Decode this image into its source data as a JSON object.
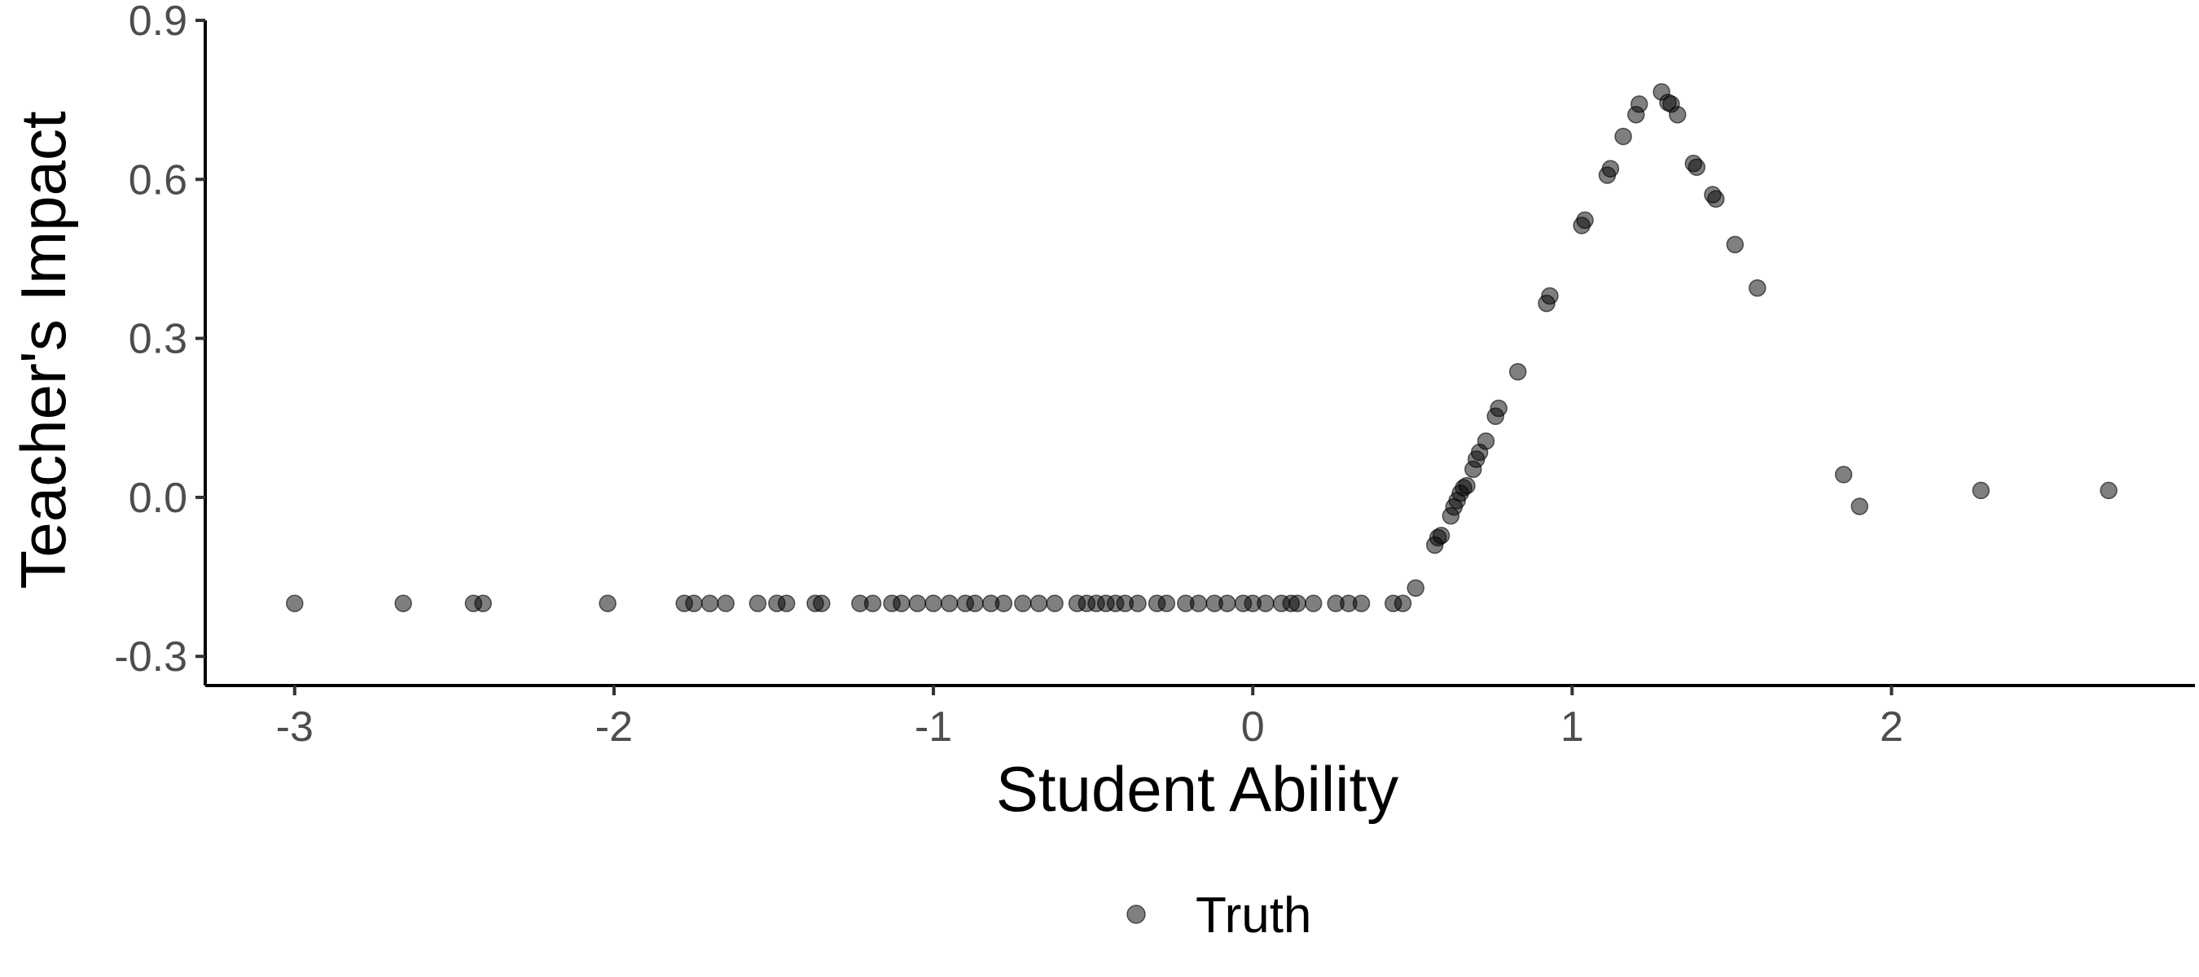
{
  "chart_data": {
    "type": "scatter",
    "xlabel": "Student Ability",
    "ylabel": "Teacher's Impact",
    "xlim": [
      -3.28,
      2.95
    ],
    "ylim": [
      -0.355,
      0.9
    ],
    "x_ticks": [
      -3,
      -2,
      -1,
      0,
      1,
      2
    ],
    "x_tick_labels": [
      "-3",
      "-2",
      "-1",
      "0",
      "1",
      "2"
    ],
    "y_ticks": [
      -0.3,
      0.0,
      0.3,
      0.6,
      0.9
    ],
    "y_tick_labels": [
      "-0.3",
      "0.0",
      "0.3",
      "0.6",
      "0.9"
    ],
    "grid": false,
    "legend_position": "bottom",
    "point_color": "#000000",
    "point_opacity": 0.5,
    "series": [
      {
        "name": "Truth",
        "points": [
          [
            -3.0,
            -0.2
          ],
          [
            -2.66,
            -0.2
          ],
          [
            -2.44,
            -0.2
          ],
          [
            -2.41,
            -0.2
          ],
          [
            -2.02,
            -0.2
          ],
          [
            -1.78,
            -0.2
          ],
          [
            -1.75,
            -0.2
          ],
          [
            -1.7,
            -0.2
          ],
          [
            -1.65,
            -0.2
          ],
          [
            -1.55,
            -0.2
          ],
          [
            -1.49,
            -0.2
          ],
          [
            -1.46,
            -0.2
          ],
          [
            -1.37,
            -0.2
          ],
          [
            -1.35,
            -0.2
          ],
          [
            -1.23,
            -0.2
          ],
          [
            -1.19,
            -0.2
          ],
          [
            -1.13,
            -0.2
          ],
          [
            -1.1,
            -0.2
          ],
          [
            -1.05,
            -0.2
          ],
          [
            -1.0,
            -0.2
          ],
          [
            -0.95,
            -0.2
          ],
          [
            -0.9,
            -0.2
          ],
          [
            -0.87,
            -0.2
          ],
          [
            -0.82,
            -0.2
          ],
          [
            -0.78,
            -0.2
          ],
          [
            -0.72,
            -0.2
          ],
          [
            -0.67,
            -0.2
          ],
          [
            -0.62,
            -0.2
          ],
          [
            -0.55,
            -0.2
          ],
          [
            -0.52,
            -0.2
          ],
          [
            -0.49,
            -0.2
          ],
          [
            -0.46,
            -0.2
          ],
          [
            -0.43,
            -0.2
          ],
          [
            -0.4,
            -0.2
          ],
          [
            -0.36,
            -0.2
          ],
          [
            -0.3,
            -0.2
          ],
          [
            -0.27,
            -0.2
          ],
          [
            -0.21,
            -0.2
          ],
          [
            -0.17,
            -0.2
          ],
          [
            -0.12,
            -0.2
          ],
          [
            -0.08,
            -0.2
          ],
          [
            -0.03,
            -0.2
          ],
          [
            0.0,
            -0.2
          ],
          [
            0.04,
            -0.2
          ],
          [
            0.09,
            -0.2
          ],
          [
            0.12,
            -0.2
          ],
          [
            0.14,
            -0.2
          ],
          [
            0.19,
            -0.2
          ],
          [
            0.26,
            -0.2
          ],
          [
            0.3,
            -0.2
          ],
          [
            0.34,
            -0.2
          ],
          [
            0.44,
            -0.2
          ],
          [
            0.47,
            -0.2
          ],
          [
            0.51,
            -0.171
          ],
          [
            0.57,
            -0.09
          ],
          [
            0.58,
            -0.076
          ],
          [
            0.59,
            -0.072
          ],
          [
            0.62,
            -0.035
          ],
          [
            0.63,
            -0.018
          ],
          [
            0.64,
            -0.006
          ],
          [
            0.65,
            0.008
          ],
          [
            0.66,
            0.018
          ],
          [
            0.67,
            0.022
          ],
          [
            0.69,
            0.053
          ],
          [
            0.7,
            0.072
          ],
          [
            0.71,
            0.085
          ],
          [
            0.73,
            0.106
          ],
          [
            0.76,
            0.153
          ],
          [
            0.77,
            0.168
          ],
          [
            0.83,
            0.237
          ],
          [
            0.92,
            0.366
          ],
          [
            0.93,
            0.38
          ],
          [
            1.03,
            0.513
          ],
          [
            1.04,
            0.523
          ],
          [
            1.11,
            0.608
          ],
          [
            1.12,
            0.62
          ],
          [
            1.16,
            0.681
          ],
          [
            1.2,
            0.722
          ],
          [
            1.21,
            0.742
          ],
          [
            1.28,
            0.765
          ],
          [
            1.3,
            0.745
          ],
          [
            1.31,
            0.742
          ],
          [
            1.33,
            0.722
          ],
          [
            1.38,
            0.63
          ],
          [
            1.39,
            0.623
          ],
          [
            1.44,
            0.571
          ],
          [
            1.45,
            0.563
          ],
          [
            1.51,
            0.477
          ],
          [
            1.58,
            0.395
          ],
          [
            1.85,
            0.043
          ],
          [
            1.9,
            -0.017
          ],
          [
            2.28,
            0.013
          ],
          [
            2.68,
            0.013
          ]
        ]
      }
    ]
  }
}
